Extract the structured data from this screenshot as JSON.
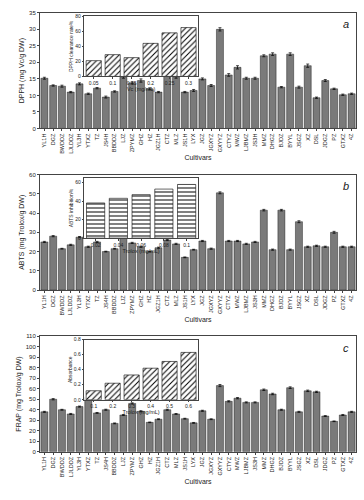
{
  "chart_data": [
    {
      "type": "bar",
      "categories": [
        "YL1H",
        "DGZ",
        "BWDDZ",
        "LJLDDZ",
        "YL3H",
        "YTXZ",
        "TZ",
        "JS4H",
        "BBDDZ",
        "LJZ",
        "ZPYMZ",
        "GHZ",
        "HZ",
        "JGZ1H",
        "CTZ",
        "MLZ",
        "JS1H",
        "LYX",
        "JGZ",
        "JGXYZ",
        "GXYYZ",
        "CTYZ",
        "MWZ",
        "LJBMZ",
        "JS3H",
        "MMZ",
        "DHGZ",
        "BJDZ",
        "BYYL",
        "JSGZ",
        "XZ",
        "DSL",
        "JDGZ",
        "PZ",
        "GTXZ",
        "4Z"
      ],
      "values": [
        15.2,
        13.0,
        12.8,
        11.0,
        13.5,
        10.5,
        12.2,
        9.5,
        11.2,
        15.5,
        13.8,
        14.5,
        12.0,
        11.0,
        17.5,
        15.5,
        11.0,
        11.5,
        15.0,
        13.0,
        30.0,
        16.2,
        18.5,
        15.2,
        15.2,
        22.0,
        22.5,
        12.5,
        22.5,
        12.5,
        19.0,
        9.3,
        14.5,
        12.0,
        10.2,
        10.5
      ],
      "errors": [
        0.3,
        0.2,
        0.3,
        0.2,
        0.3,
        0.2,
        0.2,
        0.3,
        0.2,
        0.3,
        0.3,
        0.5,
        0.3,
        0.2,
        1.5,
        0.3,
        0.2,
        0.3,
        0.3,
        0.3,
        0.5,
        0.4,
        0.5,
        0.3,
        0.3,
        0.3,
        0.4,
        0.2,
        0.4,
        0.3,
        0.5,
        0.2,
        0.3,
        0.2,
        0.2,
        0.2
      ],
      "color": "#7a7a7a",
      "xlabel": "Cultivars",
      "ylabel": "DPPH (mg Vc/g DW)",
      "ylim": [
        0,
        35
      ],
      "yticks": [
        0,
        5,
        10,
        15,
        20,
        25,
        30,
        35
      ],
      "annotations": [
        "a"
      ],
      "grid": false
    },
    {
      "type": "bar",
      "categories": [
        "0.05",
        "0.1",
        "0.15",
        "0.2",
        "0.25",
        "0.3"
      ],
      "values": [
        21,
        29,
        25,
        44,
        58,
        65
      ],
      "color": "#ffffff",
      "marker": "diagonal",
      "xlabel": "Vc (mg/mL)",
      "ylabel": "DPPH clearance rate%",
      "ylim": [
        0,
        80
      ],
      "yticks": [
        0,
        20,
        40,
        60,
        80
      ],
      "grid": false
    },
    {
      "type": "bar",
      "categories": [
        "YL1H",
        "DGZ",
        "BWDDZ",
        "LJLDDZ",
        "YL3H",
        "YTXZ",
        "TZ",
        "JS4H",
        "BBDDZ",
        "LJZ",
        "ZPYMZ",
        "GHZ",
        "HZ",
        "JGZ1H",
        "CTZ",
        "MLZ",
        "JS1H",
        "LYX",
        "JGZ",
        "JGXYZ",
        "GXYYZ",
        "CTYZ",
        "MWZ",
        "LJBMZ",
        "JS3H",
        "MMZ",
        "DHGZ",
        "BJDZ",
        "BYYL",
        "JSGZ",
        "XZ",
        "DSL",
        "JDGZ",
        "PZ",
        "GTXZ",
        "4Z"
      ],
      "values": [
        25.0,
        28.0,
        21.5,
        23.5,
        27.5,
        22.5,
        25.0,
        20.0,
        21.5,
        29.0,
        24.5,
        22.5,
        20.0,
        22.0,
        26.0,
        24.0,
        17.0,
        21.0,
        25.5,
        21.5,
        50.5,
        25.5,
        25.5,
        24.0,
        25.0,
        41.5,
        21.0,
        41.5,
        21.0,
        35.5,
        22.5,
        23.0,
        22.5,
        30.0,
        22.5,
        22.5
      ],
      "errors": [
        0.3,
        0.3,
        0.2,
        0.3,
        0.3,
        0.3,
        0.3,
        0.2,
        0.2,
        0.4,
        0.3,
        0.3,
        0.2,
        0.3,
        0.3,
        0.3,
        0.2,
        0.2,
        0.3,
        0.3,
        0.5,
        0.3,
        0.3,
        0.3,
        0.3,
        0.4,
        0.3,
        0.4,
        0.3,
        0.5,
        0.3,
        0.3,
        0.3,
        0.5,
        0.3,
        0.3
      ],
      "color": "#7a7a7a",
      "xlabel": "Cultivars",
      "ylabel": "ABTS (mg Trolox/g DW)",
      "ylim": [
        0,
        60
      ],
      "yticks": [
        0,
        10,
        20,
        30,
        40,
        50,
        60
      ],
      "annotations": [
        "b"
      ],
      "grid": false
    },
    {
      "type": "bar",
      "categories": [
        "0.02",
        "0.04",
        "0.06",
        "0.08",
        "0.1"
      ],
      "values": [
        38,
        43,
        47,
        53,
        58
      ],
      "color": "#ffffff",
      "marker": "horizontal",
      "xlabel": "Trolox (mg/mL)",
      "ylabel": "ABTS inhibition%",
      "ylim": [
        0,
        65
      ],
      "yticks": [
        0,
        20,
        40,
        60
      ],
      "grid": false
    },
    {
      "type": "bar",
      "categories": [
        "YL1H",
        "DGZ",
        "BWDDZ",
        "LJLDDZ",
        "YL3H",
        "YTXZ",
        "TZ",
        "JS4H",
        "BBDDZ",
        "LJZ",
        "ZPYMZ",
        "GHZ",
        "HZ",
        "JGZ1H",
        "CTZ",
        "MLZ",
        "JS1H",
        "LYX",
        "JGZ",
        "JGXYZ",
        "GXYYZ",
        "CTYZ",
        "MWZ",
        "LJBMZ",
        "JS3H",
        "MMZ",
        "DHGZ",
        "BJDZ",
        "BYYL",
        "JSGZ",
        "XZ",
        "DSL",
        "JDGZ",
        "PZ",
        "GTXZ",
        "4Z"
      ],
      "values": [
        38.0,
        50.0,
        40.0,
        36.0,
        43.0,
        52.0,
        37.0,
        40.0,
        27.0,
        35.0,
        46.0,
        38.5,
        28.0,
        31.0,
        40.0,
        36.0,
        31.5,
        27.5,
        39.0,
        31.0,
        63.0,
        48.0,
        51.0,
        47.0,
        47.0,
        59.0,
        55.0,
        40.0,
        61.0,
        38.0,
        58.0,
        57.0,
        34.0,
        29.0,
        35.0,
        38.0
      ],
      "errors": [
        0.5,
        0.6,
        0.4,
        0.5,
        0.5,
        0.7,
        0.4,
        0.5,
        0.4,
        0.5,
        0.6,
        0.5,
        0.3,
        0.4,
        0.5,
        0.4,
        0.4,
        0.4,
        0.5,
        0.4,
        1.0,
        0.6,
        0.6,
        0.5,
        0.5,
        0.7,
        0.7,
        0.5,
        0.8,
        0.5,
        0.7,
        0.6,
        0.4,
        0.3,
        0.5,
        0.5
      ],
      "color": "#7a7a7a",
      "xlabel": "Cultivars",
      "ylabel": "FRAP (mg Trolox/g DW)",
      "ylim": [
        0,
        110
      ],
      "yticks": [
        0,
        10,
        20,
        30,
        40,
        50,
        60,
        70,
        80,
        90,
        100,
        110
      ],
      "annotations": [
        "c"
      ],
      "grid": false
    },
    {
      "type": "bar",
      "categories": [
        "0.1",
        "0.2",
        "0.3",
        "0.4",
        "0.5",
        "0.6"
      ],
      "values": [
        0.12,
        0.22,
        0.33,
        0.42,
        0.51,
        0.63
      ],
      "color": "#ffffff",
      "marker": "diagonal",
      "xlabel": "Trolox (mg/mL)",
      "ylabel": "Absorbance",
      "ylim": [
        0,
        0.8
      ],
      "yticks": [
        {
          "value": 0.0,
          "label": "0.0"
        },
        0.2,
        0.4,
        0.6,
        0.8
      ],
      "grid": false
    }
  ]
}
